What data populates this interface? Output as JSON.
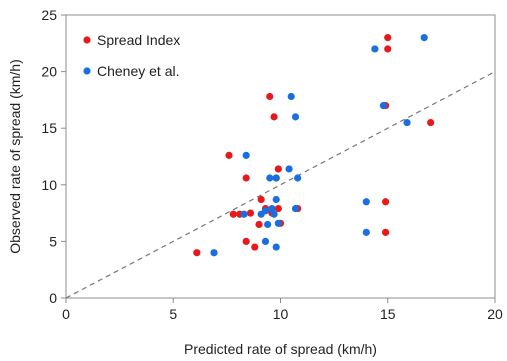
{
  "chart_data": {
    "type": "scatter",
    "xlabel": "Predicted rate of spread (km/h)",
    "ylabel": "Observed rate of spread (km/h)",
    "xlim": [
      0,
      20
    ],
    "ylim": [
      0,
      25
    ],
    "xticks": [
      0,
      5,
      10,
      15,
      20
    ],
    "yticks": [
      0,
      5,
      10,
      15,
      20,
      25
    ],
    "grid": false,
    "legend": "top-left",
    "reference_line": {
      "style": "dashed",
      "color": "#777777",
      "from": [
        0,
        0
      ],
      "to": [
        20,
        20
      ]
    },
    "series": [
      {
        "name": "Spread Index",
        "color": "#e8191c",
        "points": [
          [
            6.1,
            4.0
          ],
          [
            7.6,
            12.6
          ],
          [
            7.8,
            7.4
          ],
          [
            8.1,
            7.4
          ],
          [
            8.4,
            5.0
          ],
          [
            8.4,
            10.6
          ],
          [
            8.6,
            7.5
          ],
          [
            8.8,
            4.5
          ],
          [
            9.0,
            6.5
          ],
          [
            9.1,
            8.7
          ],
          [
            9.3,
            7.9
          ],
          [
            9.5,
            17.8
          ],
          [
            9.6,
            7.5
          ],
          [
            9.7,
            16.0
          ],
          [
            9.8,
            10.6
          ],
          [
            9.9,
            11.4
          ],
          [
            9.9,
            7.9
          ],
          [
            10.0,
            6.6
          ],
          [
            10.8,
            7.9
          ],
          [
            14.9,
            17.0
          ],
          [
            15.0,
            22.0
          ],
          [
            15.0,
            23.0
          ],
          [
            14.9,
            8.5
          ],
          [
            14.9,
            5.8
          ],
          [
            17.0,
            15.5
          ]
        ]
      },
      {
        "name": "Cheney et al.",
        "color": "#1a6fe0",
        "points": [
          [
            6.9,
            4.0
          ],
          [
            8.3,
            7.4
          ],
          [
            8.4,
            12.6
          ],
          [
            9.1,
            7.4
          ],
          [
            9.3,
            7.7
          ],
          [
            9.3,
            5.0
          ],
          [
            9.4,
            6.5
          ],
          [
            9.5,
            10.6
          ],
          [
            9.6,
            7.9
          ],
          [
            9.7,
            7.4
          ],
          [
            9.8,
            8.7
          ],
          [
            9.8,
            4.5
          ],
          [
            9.8,
            10.6
          ],
          [
            9.9,
            6.6
          ],
          [
            10.4,
            11.4
          ],
          [
            10.5,
            17.8
          ],
          [
            10.7,
            16.0
          ],
          [
            10.8,
            10.6
          ],
          [
            10.7,
            7.9
          ],
          [
            14.0,
            5.8
          ],
          [
            14.0,
            8.5
          ],
          [
            14.4,
            22.0
          ],
          [
            14.8,
            17.0
          ],
          [
            15.9,
            15.5
          ],
          [
            16.7,
            23.0
          ]
        ]
      }
    ]
  }
}
